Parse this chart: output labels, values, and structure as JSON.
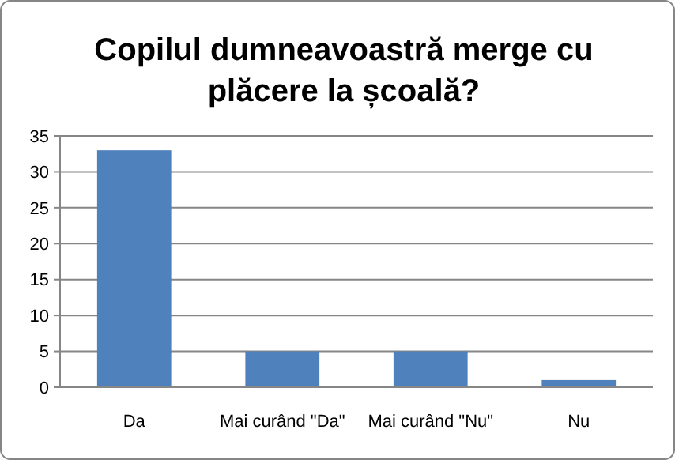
{
  "chart_data": {
    "type": "bar",
    "title": "Copilul dumneavoastră merge cu plăcere la școală?",
    "categories": [
      "Da",
      "Mai curând \"Da\"",
      "Mai curând \"Nu\"",
      "Nu"
    ],
    "values": [
      33,
      5,
      5,
      1
    ],
    "color": "#4f81bd",
    "ylim": [
      0,
      35
    ],
    "yticks": [
      0,
      5,
      10,
      15,
      20,
      25,
      30,
      35
    ],
    "grid": "y"
  }
}
